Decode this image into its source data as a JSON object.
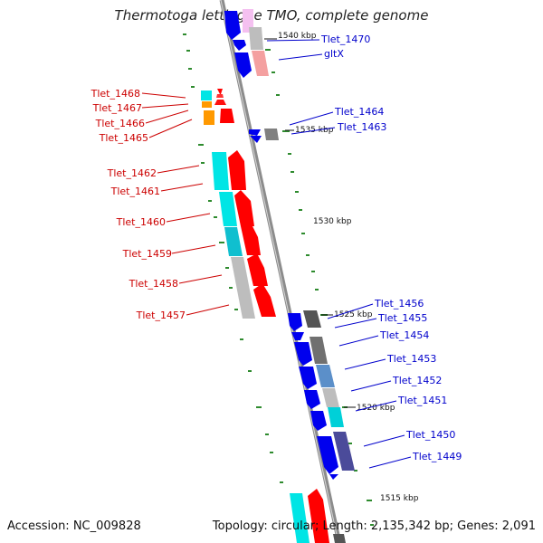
{
  "title": "Thermotoga lettingae TMO, complete genome",
  "footer": {
    "accession": "Accession: NC_009828",
    "summary": "Topology: circular; Length: 2,135,342 bp; Genes: 2,091"
  },
  "colors": {
    "forward_label": "#cc0000",
    "reverse_label": "#0000cc",
    "backbone": "#8c8c8c",
    "gc_tick": "#2e8b2e",
    "forward_gene": "#ff0000",
    "reverse_gene": "#0000ee",
    "cog_cyan": "#00e5e5",
    "cog_orange": "#ff9900",
    "cog_gray": "#bdbdbd",
    "cog_dark": "#555555",
    "cog_steel": "#5b8fc9",
    "cog_navy": "#4b4b9a",
    "cog_pink": "#f4a0a0",
    "cog_lilac": "#f4c0f0"
  },
  "kbp_labels": [
    "1540 kbp",
    "1535 kbp",
    "1530 kbp",
    "1525 kbp",
    "1520 kbp",
    "1515 kbp"
  ],
  "forward_genes": [
    "Tlet_1468",
    "Tlet_1467",
    "Tlet_1466",
    "Tlet_1465",
    "Tlet_1462",
    "Tlet_1461",
    "Tlet_1460",
    "Tlet_1459",
    "Tlet_1458",
    "Tlet_1457"
  ],
  "reverse_genes": [
    "Tlet_1470",
    "gltX",
    "Tlet_1464",
    "Tlet_1463",
    "Tlet_1456",
    "Tlet_1455",
    "Tlet_1454",
    "Tlet_1453",
    "Tlet_1452",
    "Tlet_1451",
    "Tlet_1450",
    "Tlet_1449"
  ]
}
